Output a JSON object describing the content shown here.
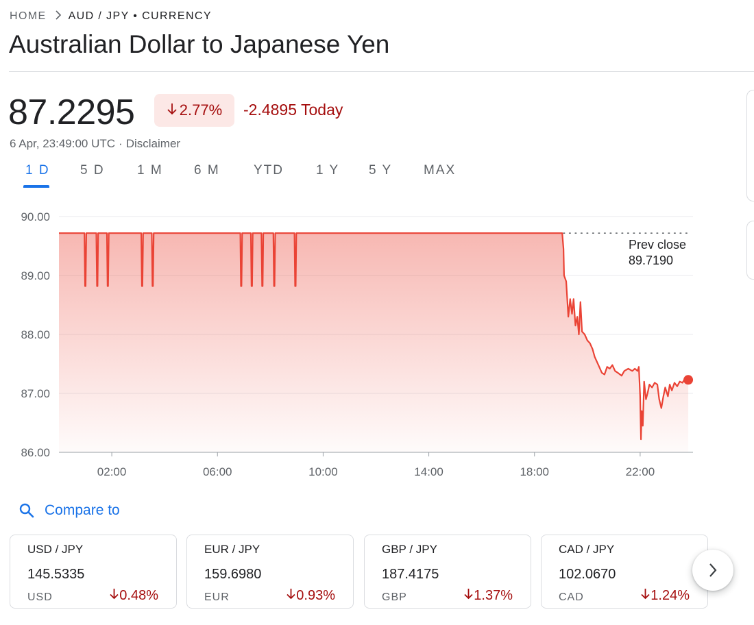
{
  "breadcrumb": {
    "home": "HOME",
    "current": "AUD / JPY • CURRENCY"
  },
  "title": "Australian Dollar to Japanese Yen",
  "quote": {
    "price": "87.2295",
    "change_percent": "2.77%",
    "change_direction": "down",
    "change_value": "-2.4895 Today",
    "timestamp": "6 Apr, 23:49:00 UTC",
    "separator": "·",
    "disclaimer": "Disclaimer"
  },
  "tabs": [
    {
      "label": "1 D",
      "active": true
    },
    {
      "label": "5 D",
      "active": false
    },
    {
      "label": "1 M",
      "active": false
    },
    {
      "label": "6 M",
      "active": false
    },
    {
      "label": "YTD",
      "active": false
    },
    {
      "label": "1 Y",
      "active": false
    },
    {
      "label": "5 Y",
      "active": false
    },
    {
      "label": "MAX",
      "active": false
    }
  ],
  "chart_data": {
    "type": "line",
    "series_color": "#ea4335",
    "fill": "gradient",
    "ylim": [
      86.0,
      90.0
    ],
    "y_ticks": [
      "90.00",
      "89.00",
      "88.00",
      "87.00",
      "86.00"
    ],
    "x_ticks": [
      "02:00",
      "06:00",
      "10:00",
      "14:00",
      "18:00",
      "22:00"
    ],
    "x_tick_hours": [
      2,
      6,
      10,
      14,
      18,
      22
    ],
    "x_range_hours": [
      0,
      24
    ],
    "prev_close": {
      "label_line1": "Prev close",
      "label_line2": "89.7190",
      "value": 89.719
    },
    "dips": [
      {
        "hour": 1.0,
        "value": 88.82
      },
      {
        "hour": 1.45,
        "value": 88.82
      },
      {
        "hour": 1.85,
        "value": 88.82
      },
      {
        "hour": 3.15,
        "value": 88.82
      },
      {
        "hour": 3.55,
        "value": 88.82
      },
      {
        "hour": 6.9,
        "value": 88.82
      },
      {
        "hour": 7.3,
        "value": 88.82
      },
      {
        "hour": 7.7,
        "value": 88.82
      },
      {
        "hour": 8.15,
        "value": 88.82
      },
      {
        "hour": 8.95,
        "value": 88.82
      }
    ],
    "points": [
      [
        0.0,
        89.719
      ],
      [
        19.05,
        89.719
      ],
      [
        19.1,
        89.45
      ],
      [
        19.12,
        89.0
      ],
      [
        19.2,
        88.9
      ],
      [
        19.28,
        88.3
      ],
      [
        19.35,
        88.6
      ],
      [
        19.42,
        88.35
      ],
      [
        19.48,
        88.6
      ],
      [
        19.55,
        88.15
      ],
      [
        19.62,
        88.3
      ],
      [
        19.68,
        88.0
      ],
      [
        19.74,
        88.55
      ],
      [
        19.8,
        88.05
      ],
      [
        19.9,
        88.0
      ],
      [
        20.0,
        87.9
      ],
      [
        20.1,
        87.85
      ],
      [
        20.2,
        87.75
      ],
      [
        20.28,
        87.62
      ],
      [
        20.35,
        87.55
      ],
      [
        20.45,
        87.45
      ],
      [
        20.55,
        87.35
      ],
      [
        20.65,
        87.32
      ],
      [
        20.75,
        87.45
      ],
      [
        20.85,
        87.42
      ],
      [
        20.95,
        87.48
      ],
      [
        21.05,
        87.38
      ],
      [
        21.15,
        87.35
      ],
      [
        21.3,
        87.3
      ],
      [
        21.4,
        87.38
      ],
      [
        21.55,
        87.42
      ],
      [
        21.7,
        87.38
      ],
      [
        21.8,
        87.42
      ],
      [
        21.9,
        87.38
      ],
      [
        21.95,
        87.45
      ],
      [
        22.0,
        86.95
      ],
      [
        22.03,
        86.22
      ],
      [
        22.06,
        86.7
      ],
      [
        22.1,
        86.45
      ],
      [
        22.15,
        87.2
      ],
      [
        22.22,
        86.9
      ],
      [
        22.28,
        87.0
      ],
      [
        22.35,
        87.15
      ],
      [
        22.45,
        87.1
      ],
      [
        22.55,
        87.18
      ],
      [
        22.65,
        87.15
      ],
      [
        22.72,
        86.9
      ],
      [
        22.8,
        86.75
      ],
      [
        22.88,
        86.95
      ],
      [
        22.95,
        87.1
      ],
      [
        23.05,
        86.95
      ],
      [
        23.12,
        87.15
      ],
      [
        23.2,
        87.05
      ],
      [
        23.3,
        87.18
      ],
      [
        23.4,
        87.12
      ],
      [
        23.5,
        87.2
      ],
      [
        23.6,
        87.18
      ],
      [
        23.7,
        87.25
      ],
      [
        23.82,
        87.2295
      ]
    ]
  },
  "compare": {
    "label": "Compare to"
  },
  "cards": [
    {
      "pair": "USD / JPY",
      "value": "145.5335",
      "currency": "USD",
      "change": "0.48%"
    },
    {
      "pair": "EUR / JPY",
      "value": "159.6980",
      "currency": "EUR",
      "change": "0.93%"
    },
    {
      "pair": "GBP / JPY",
      "value": "187.4175",
      "currency": "GBP",
      "change": "1.37%"
    },
    {
      "pair": "CAD / JPY",
      "value": "102.0670",
      "currency": "CAD",
      "change": "1.24%"
    }
  ],
  "colors": {
    "accent": "#1a73e8",
    "negative": "#a50e0e",
    "negative_bg": "#fce8e6",
    "line": "#ea4335"
  },
  "icons": {
    "down_arrow": "arrow-down-icon",
    "search": "search-icon",
    "next": "chevron-right-icon",
    "breadcrumb_sep": "chevron-right-icon"
  }
}
